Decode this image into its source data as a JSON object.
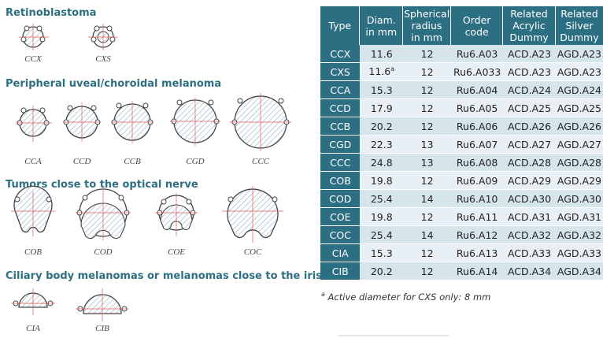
{
  "sections": [
    {
      "title": "Retinoblastoma"
    },
    {
      "title": "Peripheral uveal/choroidal melanoma"
    },
    {
      "title": "Tumors close to the optical nerve"
    },
    {
      "title": "Ciliary body melanomas or melanomas close to the iris"
    }
  ],
  "shape_labels": [
    "CCX",
    "CXS",
    "CCA",
    "CCD",
    "CCB",
    "CGD",
    "CCC",
    "COB",
    "COD",
    "COE",
    "COC",
    "CIA",
    "CIB"
  ],
  "table": {
    "headers": [
      [
        "Type"
      ],
      [
        "Diam.",
        "in mm"
      ],
      [
        "Spherical",
        "radius",
        "in mm"
      ],
      [
        "Order",
        "code"
      ],
      [
        "Related",
        "Acrylic",
        "Dummy"
      ],
      [
        "Related",
        "Silver",
        "Dummy"
      ]
    ],
    "rows": [
      [
        "CCX",
        "11.6",
        "12",
        "Ru6.A03",
        "ACD.A23",
        "AGD.A23"
      ],
      [
        "CXS",
        "11.6",
        "12",
        "Ru6.A033",
        "ACD.A23",
        "AGD.A23"
      ],
      [
        "CCA",
        "15.3",
        "12",
        "Ru6.A04",
        "ACD.A24",
        "AGD.A24"
      ],
      [
        "CCD",
        "17.9",
        "12",
        "Ru6.A05",
        "ACD.A25",
        "AGD.A25"
      ],
      [
        "CCB",
        "20.2",
        "12",
        "Ru6.A06",
        "ACD.A26",
        "AGD.A26"
      ],
      [
        "CGD",
        "22.3",
        "13",
        "Ru6.A07",
        "ACD.A27",
        "AGD.A27"
      ],
      [
        "CCC",
        "24.8",
        "13",
        "Ru6.A08",
        "ACD.A28",
        "AGD.A28"
      ],
      [
        "COB",
        "19.8",
        "12",
        "Ru6.A09",
        "ACD.A29",
        "AGD.A29"
      ],
      [
        "COD",
        "25.4",
        "14",
        "Ru6.A10",
        "ACD.A30",
        "AGD.A30"
      ],
      [
        "COE",
        "19.8",
        "12",
        "Ru6.A11",
        "ACD.A31",
        "AGD.A31"
      ],
      [
        "COC",
        "25.4",
        "14",
        "Ru6.A12",
        "ACD.A32",
        "AGD.A32"
      ],
      [
        "CIA",
        "15.3",
        "12",
        "Ru6.A13",
        "ACD.A33",
        "AGD.A33"
      ],
      [
        "CIB",
        "20.2",
        "12",
        "Ru6.A14",
        "ACD.A34",
        "AGD.A34"
      ]
    ],
    "diam_marker": "a"
  },
  "footnote": {
    "marker": "a",
    "text": " Active diameter for CXS only: 8 mm"
  },
  "colors": {
    "accent": "#2d6f82",
    "row_light": "#d6e4ec",
    "row_lighter": "#e9f0f5",
    "hatch": "#8fb0c8",
    "crosshair": "#e05a5a"
  }
}
